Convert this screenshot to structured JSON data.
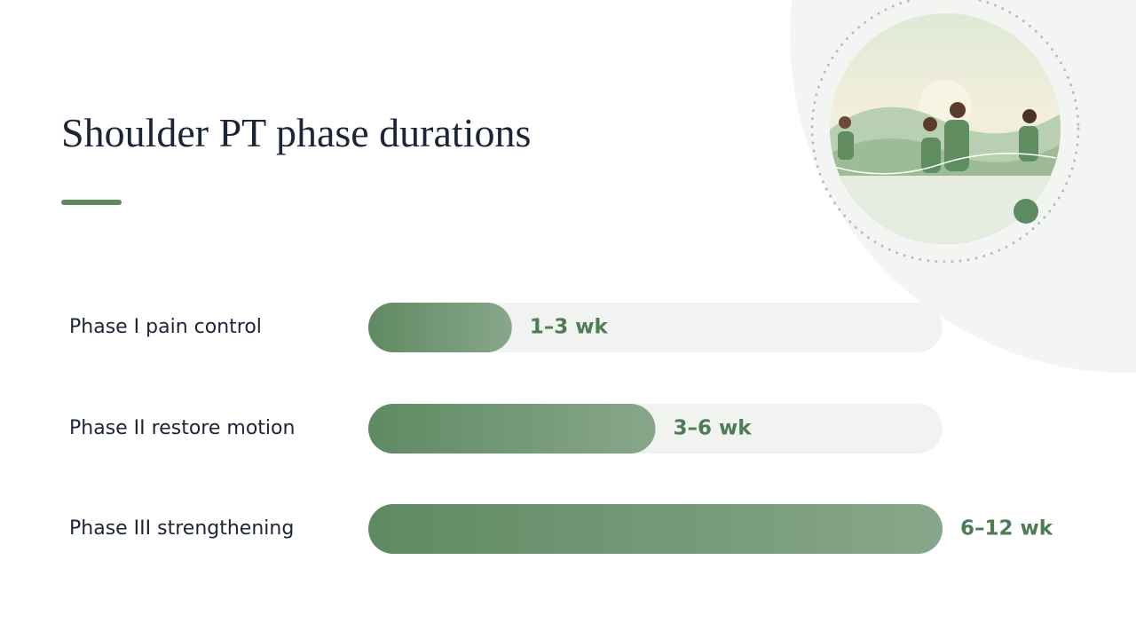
{
  "chart_data": {
    "type": "bar",
    "orientation": "horizontal",
    "title": "Shoulder PT phase durations",
    "categories": [
      "Phase I pain control",
      "Phase II restore motion",
      "Phase III strengthening"
    ],
    "values": [
      3,
      6,
      12
    ],
    "value_labels": [
      "1–3 wk",
      "3–6 wk",
      "6–12 wk"
    ],
    "color": "#5e8a62"
  }
}
